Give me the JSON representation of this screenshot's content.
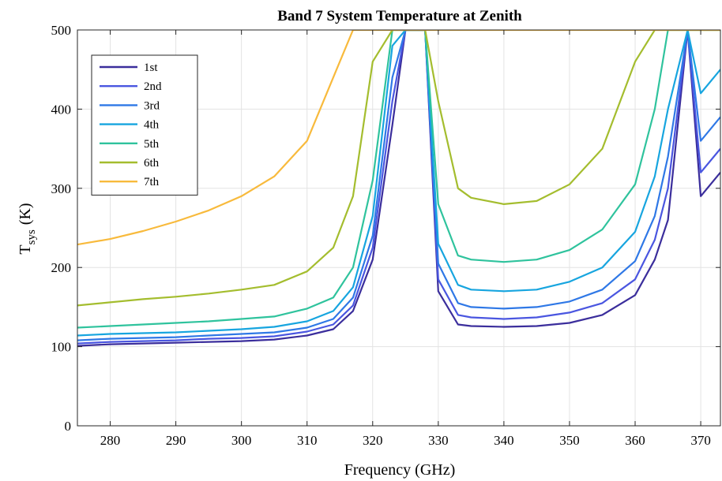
{
  "chart_data": {
    "type": "line",
    "title": "Band 7 System Temperature at Zenith",
    "xlabel": "Frequency (GHz)",
    "ylabel_main": "T",
    "ylabel_sub": "sys",
    "ylabel_unit": "(K)",
    "xlim": [
      275,
      373
    ],
    "ylim": [
      0,
      500
    ],
    "xticks": [
      280,
      290,
      300,
      310,
      320,
      330,
      340,
      350,
      360,
      370
    ],
    "yticks": [
      0,
      100,
      200,
      300,
      400,
      500
    ],
    "grid": true,
    "legend_position": "top-left",
    "x": [
      275,
      280,
      285,
      290,
      295,
      300,
      305,
      310,
      314,
      317,
      320,
      323,
      325,
      328,
      330,
      333,
      335,
      340,
      345,
      350,
      355,
      360,
      363,
      365,
      368,
      370,
      373
    ],
    "series": [
      {
        "name": "1st",
        "color": "#3b2e9c",
        "values": [
          101,
          103,
          104,
          105,
          106,
          107,
          109,
          114,
          122,
          145,
          210,
          380,
          500,
          500,
          170,
          128,
          126,
          125,
          126,
          130,
          140,
          165,
          210,
          260,
          500,
          290,
          320
        ]
      },
      {
        "name": "2nd",
        "color": "#4a56e0",
        "values": [
          104,
          106,
          107,
          108,
          110,
          111,
          113,
          119,
          128,
          152,
          225,
          410,
          500,
          500,
          185,
          140,
          137,
          135,
          137,
          143,
          155,
          185,
          235,
          300,
          500,
          320,
          350
        ]
      },
      {
        "name": "3rd",
        "color": "#2f78e6",
        "values": [
          108,
          110,
          111,
          112,
          114,
          116,
          118,
          124,
          135,
          162,
          240,
          440,
          500,
          500,
          205,
          155,
          150,
          148,
          150,
          157,
          172,
          208,
          265,
          340,
          500,
          360,
          390
        ]
      },
      {
        "name": "4th",
        "color": "#17a5df",
        "values": [
          114,
          116,
          117,
          118,
          120,
          122,
          125,
          132,
          145,
          175,
          265,
          480,
          500,
          500,
          230,
          178,
          172,
          170,
          172,
          182,
          200,
          245,
          315,
          400,
          500,
          420,
          450
        ]
      },
      {
        "name": "5th",
        "color": "#2fc39d",
        "values": [
          124,
          126,
          128,
          130,
          132,
          135,
          138,
          148,
          162,
          200,
          310,
          500,
          500,
          500,
          280,
          215,
          210,
          207,
          210,
          222,
          248,
          305,
          400,
          500,
          500,
          500,
          500
        ]
      },
      {
        "name": "6th",
        "color": "#a4bd2e",
        "values": [
          152,
          156,
          160,
          163,
          167,
          172,
          178,
          195,
          225,
          290,
          460,
          500,
          500,
          500,
          410,
          300,
          288,
          280,
          284,
          305,
          350,
          460,
          500,
          500,
          500,
          500,
          500
        ]
      },
      {
        "name": "7th",
        "color": "#f8ba3c",
        "values": [
          229,
          236,
          246,
          258,
          272,
          290,
          315,
          360,
          440,
          500,
          500,
          500,
          500,
          500,
          500,
          500,
          500,
          500,
          500,
          500,
          500,
          500,
          500,
          500,
          500,
          500,
          500
        ]
      }
    ]
  }
}
